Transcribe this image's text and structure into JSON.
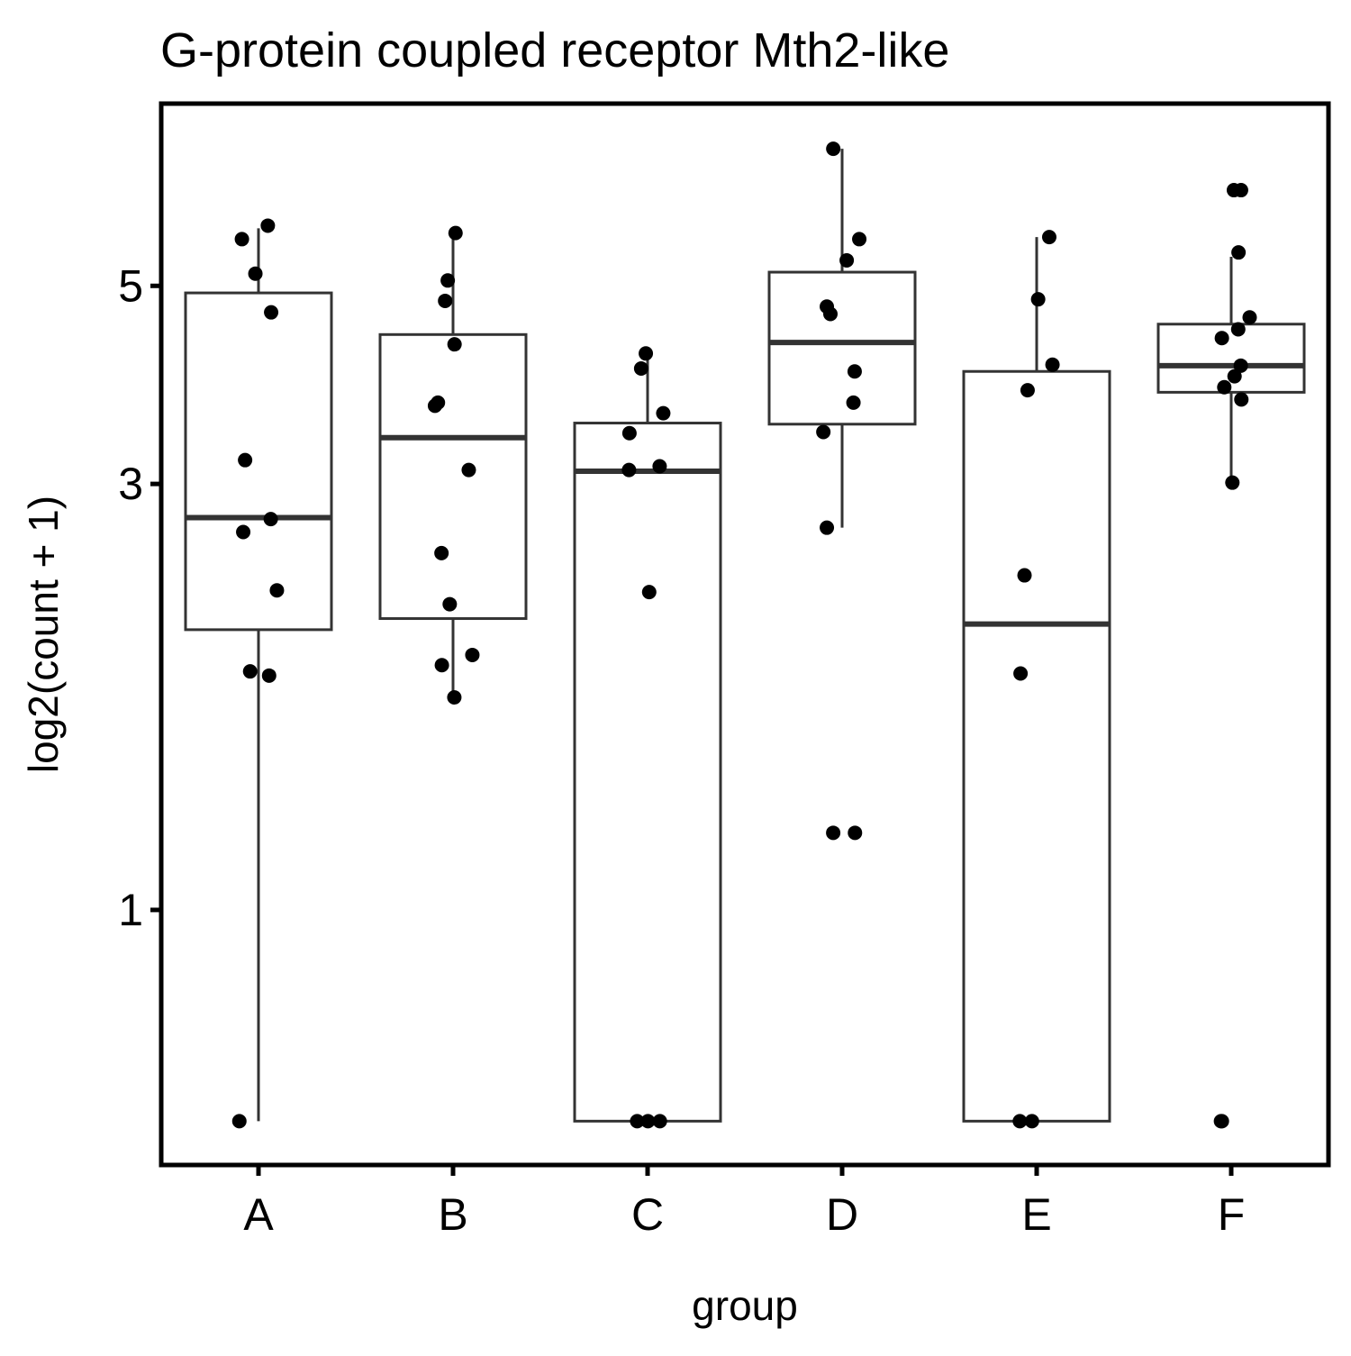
{
  "chart_data": {
    "type": "box",
    "title": "G-protein coupled receptor Mth2-like",
    "x_label": "group",
    "y_label": "log2(count + 1)",
    "categories": [
      "A",
      "B",
      "C",
      "D",
      "E",
      "F"
    ],
    "boxes": [
      {
        "low": 0.58,
        "q1": 2.06,
        "median": 2.75,
        "q3": 4.91,
        "high": 5.8
      },
      {
        "low": 1.73,
        "q1": 2.12,
        "median": 3.38,
        "q3": 4.41,
        "high": 5.73
      },
      {
        "low": 0.58,
        "q1": 0.58,
        "median": 3.1,
        "q3": 3.51,
        "high": 4.2
      },
      {
        "low": 2.68,
        "q1": 3.5,
        "median": 4.32,
        "q3": 5.18,
        "high": 7.12
      },
      {
        "low": 0.58,
        "q1": 0.58,
        "median": 2.09,
        "q3": 4.01,
        "high": 5.67
      },
      {
        "low": 3.01,
        "q1": 3.8,
        "median": 4.07,
        "q3": 4.53,
        "high": 5.39
      }
    ],
    "points": [
      [
        5.84,
        5.64,
        5.16,
        4.67,
        3.19,
        2.74,
        2.65,
        2.28,
        1.85,
        1.83,
        0.58
      ],
      [
        5.73,
        5.07,
        4.81,
        4.3,
        3.7,
        3.67,
        3.11,
        2.51,
        2.2,
        1.93,
        1.88,
        1.73
      ],
      [
        4.2,
        4.04,
        3.6,
        3.42,
        3.14,
        3.11,
        2.27,
        0.58,
        0.58,
        0.58
      ],
      [
        7.12,
        5.64,
        5.34,
        4.74,
        4.65,
        4.01,
        3.7,
        3.43,
        2.68,
        1.22,
        1.22
      ],
      [
        5.67,
        4.83,
        4.08,
        3.82,
        2.37,
        1.84,
        0.58,
        0.58
      ],
      [
        6.4,
        6.4,
        5.45,
        4.61,
        4.47,
        4.37,
        4.07,
        3.96,
        3.85,
        3.73,
        3.01,
        0.58,
        0.58
      ]
    ],
    "log_scale": true,
    "ylim": [
      0.518,
      8
    ],
    "yticks": [
      1,
      3,
      5
    ],
    "box_color": "#333333",
    "point_color": "#000000"
  }
}
